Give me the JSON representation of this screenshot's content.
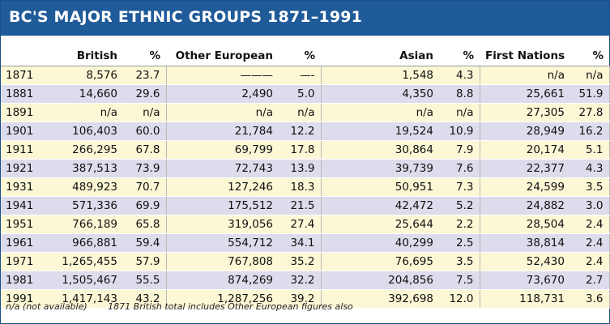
{
  "title": "BC'S MAJOR ETHNIC GROUPS 1871–1991",
  "columns": [
    "",
    "British",
    "%",
    "Other European",
    "%",
    "Asian",
    "%",
    "First Nations",
    "%"
  ],
  "rows": [
    [
      "1871",
      "8,576",
      "23.7",
      "———",
      "—-",
      "1,548",
      "4.3",
      "n/a",
      "n/a"
    ],
    [
      "1881",
      "14,660",
      "29.6",
      "2,490",
      "5.0",
      "4,350",
      "8.8",
      "25,661",
      "51.9"
    ],
    [
      "1891",
      "n/a",
      "n/a",
      "n/a",
      "n/a",
      "n/a",
      "n/a",
      "27,305",
      "27.8"
    ],
    [
      "1901",
      "106,403",
      "60.0",
      "21,784",
      "12.2",
      "19,524",
      "10.9",
      "28,949",
      "16.2"
    ],
    [
      "1911",
      "266,295",
      "67.8",
      "69,799",
      "17.8",
      "30,864",
      "7.9",
      "20,174",
      "5.1"
    ],
    [
      "1921",
      "387,513",
      "73.9",
      "72,743",
      "13.9",
      "39,739",
      "7.6",
      "22,377",
      "4.3"
    ],
    [
      "1931",
      "489,923",
      "70.7",
      "127,246",
      "18.3",
      "50,951",
      "7.3",
      "24,599",
      "3.5"
    ],
    [
      "1941",
      "571,336",
      "69.9",
      "175,512",
      "21.5",
      "42,472",
      "5.2",
      "24,882",
      "3.0"
    ],
    [
      "1951",
      "766,189",
      "65.8",
      "319,056",
      "27.4",
      "25,644",
      "2.2",
      "28,504",
      "2.4"
    ],
    [
      "1961",
      "966,881",
      "59.4",
      "554,712",
      "34.1",
      "40,299",
      "2.5",
      "38,814",
      "2.4"
    ],
    [
      "1971",
      "1,265,455",
      "57.9",
      "767,808",
      "35.2",
      "76,695",
      "3.5",
      "52,430",
      "2.4"
    ],
    [
      "1981",
      "1,505,467",
      "55.5",
      "874,269",
      "32.2",
      "204,856",
      "7.5",
      "73,670",
      "2.7"
    ],
    [
      "1991",
      "1,417,143",
      "43.2",
      "1,287,256",
      "39.2",
      "392,698",
      "12.0",
      "118,731",
      "3.6"
    ]
  ],
  "notes": [
    "n/a (not available)",
    "1871 British total includes Other European figures also"
  ],
  "colors": {
    "title_bg": "#1f5a99",
    "row_odd": "#fcf7d5",
    "row_even": "#dcdcec"
  }
}
